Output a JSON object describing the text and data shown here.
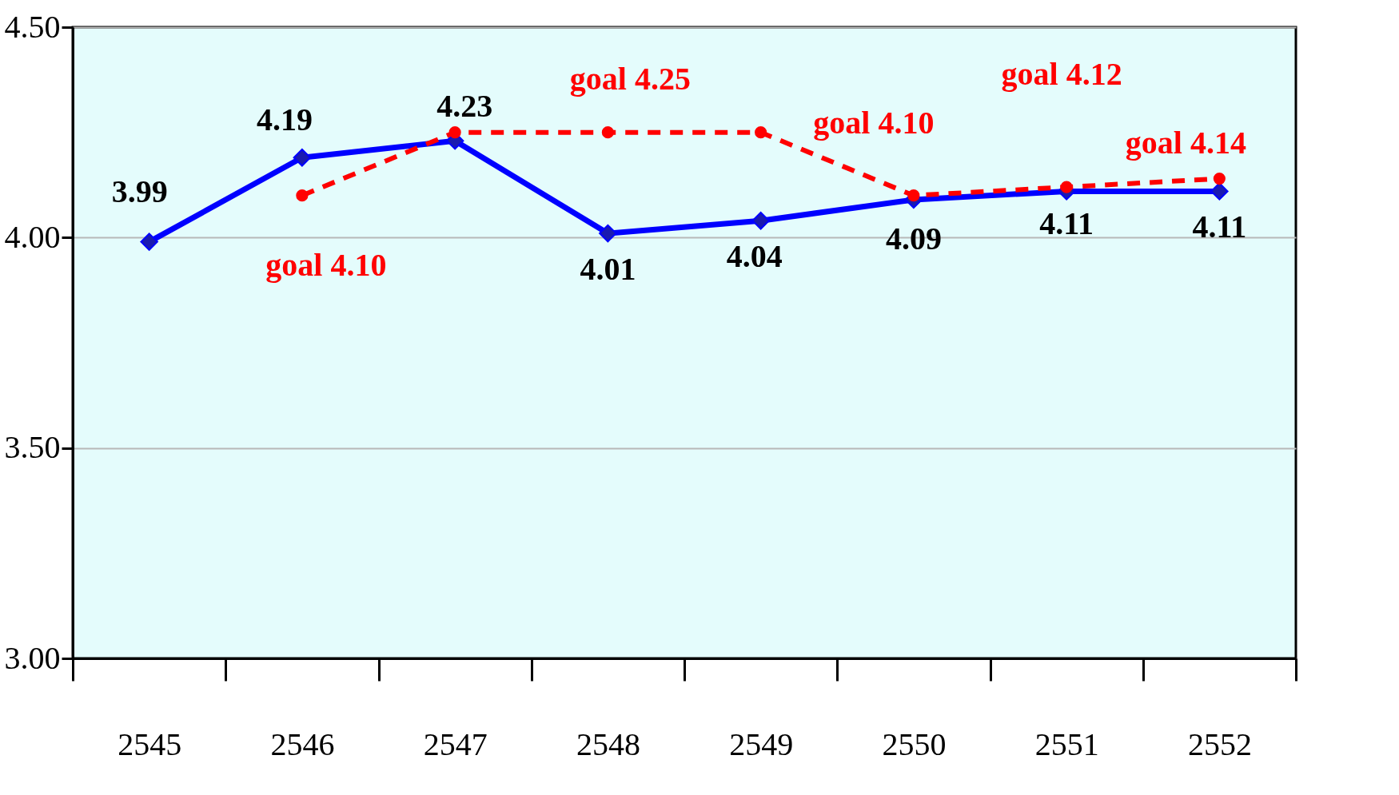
{
  "chart_data": {
    "type": "line",
    "categories": [
      "2545",
      "2546",
      "2547",
      "2548",
      "2549",
      "2550",
      "2551",
      "2552"
    ],
    "series": [
      {
        "color": "#0000ff",
        "marker": "diamond",
        "line_style": "solid",
        "values": [
          3.99,
          4.19,
          4.23,
          4.01,
          4.04,
          4.09,
          4.11,
          4.11
        ],
        "value_labels": [
          "3.99",
          "4.19",
          "4.23",
          "4.01",
          "4.04",
          "4.09",
          "4.11",
          "4.11"
        ]
      },
      {
        "color": "#ff0000",
        "marker": "circle",
        "line_style": "dashed",
        "values": [
          null,
          4.1,
          4.25,
          4.25,
          4.25,
          4.1,
          4.12,
          4.14
        ]
      }
    ],
    "annotations": [
      {
        "text": "goal  4.10",
        "x": "2546",
        "y": 4.1
      },
      {
        "text": "goal  4.25",
        "x": "2548",
        "y": 4.25
      },
      {
        "text": "goal  4.10",
        "x": "2550",
        "y": 4.1
      },
      {
        "text": "goal  4.12",
        "x": "2551",
        "y": 4.12
      },
      {
        "text": "goal  4.14",
        "x": "2552",
        "y": 4.14
      }
    ],
    "ylim": [
      3.0,
      4.5
    ],
    "yticks": [
      {
        "value": 3.0,
        "label": "3.00"
      },
      {
        "value": 3.5,
        "label": "3.50"
      },
      {
        "value": 4.0,
        "label": "4.00"
      },
      {
        "value": 4.5,
        "label": "4.50"
      }
    ],
    "grid": "y"
  }
}
